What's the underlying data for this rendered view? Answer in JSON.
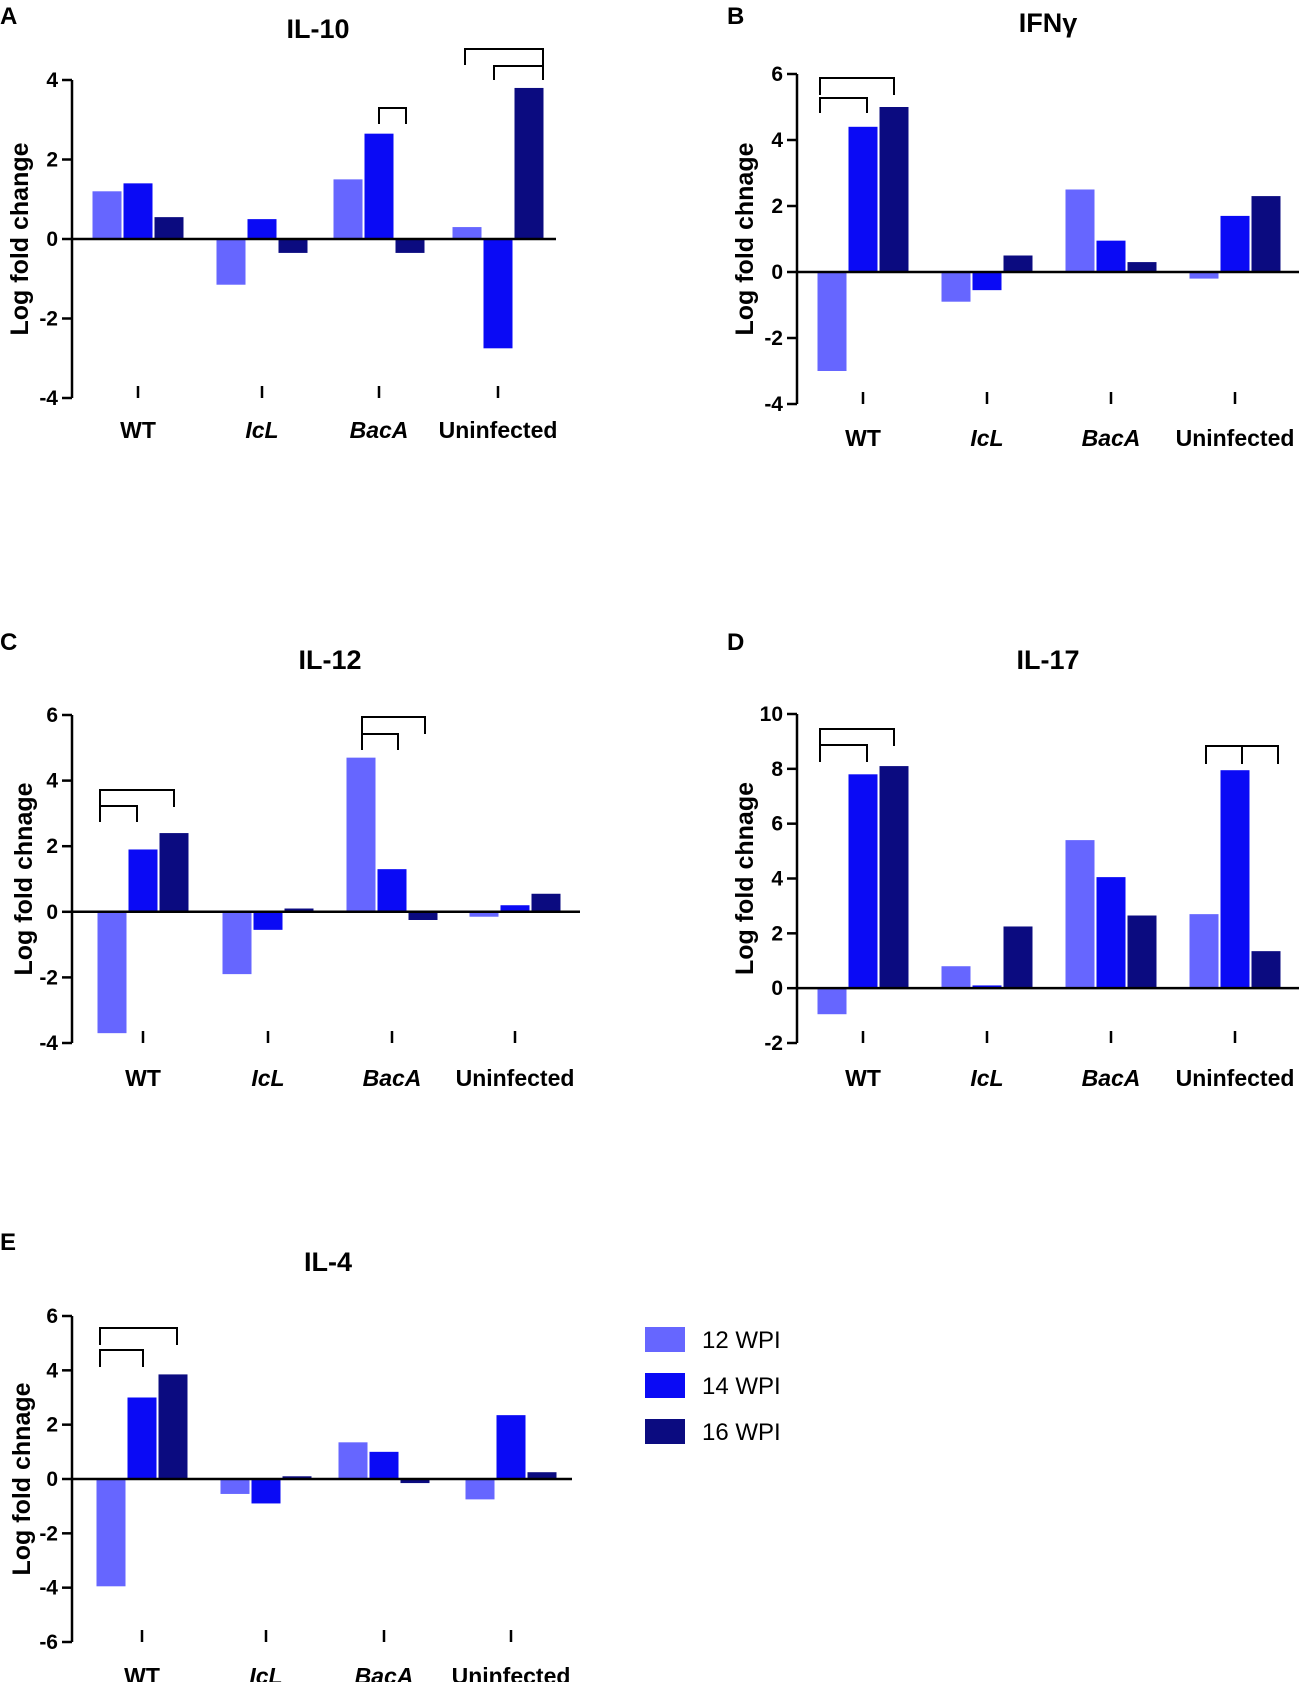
{
  "colors": {
    "12 WPI": "#6666ff",
    "14 WPI": "#0a0af5",
    "16 WPI": "#0b0b80"
  },
  "legend": [
    {
      "label": "12 WPI",
      "color": "#6666ff"
    },
    {
      "label": "14 WPI",
      "color": "#0a0af5"
    },
    {
      "label": "16 WPI",
      "color": "#0b0b80"
    }
  ],
  "chart_data": [
    {
      "panel": "A",
      "type": "bar",
      "title": "IL-10",
      "ylabel": "Log fold change",
      "categories": [
        "WT",
        "IcL",
        "BacA",
        "Uninfected"
      ],
      "italic_categories": [
        "IcL",
        "BacA"
      ],
      "ylim": [
        -4,
        4
      ],
      "yticks": [
        -4,
        -2,
        0,
        2,
        4
      ],
      "series": [
        {
          "name": "12 WPI",
          "values": [
            1.2,
            -1.15,
            1.5,
            0.3
          ]
        },
        {
          "name": "14 WPI",
          "values": [
            1.4,
            0.5,
            2.65,
            -2.75
          ]
        },
        {
          "name": "16 WPI",
          "values": [
            0.55,
            -0.35,
            -0.35,
            3.8
          ]
        }
      ]
    },
    {
      "panel": "B",
      "type": "bar",
      "title": "IFNγ",
      "ylabel": "Log fold chnage",
      "categories": [
        "WT",
        "IcL",
        "BacA",
        "Uninfected"
      ],
      "italic_categories": [
        "IcL",
        "BacA"
      ],
      "ylim": [
        -4,
        6
      ],
      "yticks": [
        -4,
        -2,
        0,
        2,
        4,
        6
      ],
      "series": [
        {
          "name": "12 WPI",
          "values": [
            -3.0,
            -0.9,
            2.5,
            -0.2
          ]
        },
        {
          "name": "14 WPI",
          "values": [
            4.4,
            -0.55,
            0.95,
            1.7
          ]
        },
        {
          "name": "16 WPI",
          "values": [
            5.0,
            0.5,
            0.3,
            2.3
          ]
        }
      ]
    },
    {
      "panel": "C",
      "type": "bar",
      "title": "IL-12",
      "ylabel": "Log fold chnage",
      "categories": [
        "WT",
        "IcL",
        "BacA",
        "Uninfected"
      ],
      "italic_categories": [
        "IcL",
        "BacA"
      ],
      "ylim": [
        -4,
        6
      ],
      "yticks": [
        -4,
        -2,
        0,
        2,
        4,
        6
      ],
      "series": [
        {
          "name": "12 WPI",
          "values": [
            -3.7,
            -1.9,
            4.7,
            -0.15
          ]
        },
        {
          "name": "14 WPI",
          "values": [
            1.9,
            -0.55,
            1.3,
            0.2
          ]
        },
        {
          "name": "16 WPI",
          "values": [
            2.4,
            0.1,
            -0.25,
            0.55
          ]
        }
      ]
    },
    {
      "panel": "D",
      "type": "bar",
      "title": "IL-17",
      "ylabel": "Log fold chnage",
      "categories": [
        "WT",
        "IcL",
        "BacA",
        "Uninfected"
      ],
      "italic_categories": [
        "IcL",
        "BacA"
      ],
      "ylim": [
        -2,
        10
      ],
      "yticks": [
        -2,
        0,
        2,
        4,
        6,
        8,
        10
      ],
      "series": [
        {
          "name": "12 WPI",
          "values": [
            -0.95,
            0.8,
            5.4,
            2.7
          ]
        },
        {
          "name": "14 WPI",
          "values": [
            7.8,
            0.1,
            4.05,
            7.95
          ]
        },
        {
          "name": "16 WPI",
          "values": [
            8.1,
            2.25,
            2.65,
            1.35
          ]
        }
      ]
    },
    {
      "panel": "E",
      "type": "bar",
      "title": "IL-4",
      "ylabel": "Log fold chnage",
      "categories": [
        "WT",
        "IcL",
        "BacA",
        "Uninfected"
      ],
      "italic_categories": [
        "IcL",
        "BacA"
      ],
      "ylim": [
        -6,
        6
      ],
      "yticks": [
        -6,
        -4,
        -2,
        0,
        2,
        4,
        6
      ],
      "series": [
        {
          "name": "12 WPI",
          "values": [
            -3.95,
            -0.55,
            1.35,
            -0.75
          ]
        },
        {
          "name": "14 WPI",
          "values": [
            3.0,
            -0.9,
            1.0,
            2.35
          ]
        },
        {
          "name": "16 WPI",
          "values": [
            3.85,
            0.1,
            -0.15,
            0.25
          ]
        }
      ]
    }
  ]
}
